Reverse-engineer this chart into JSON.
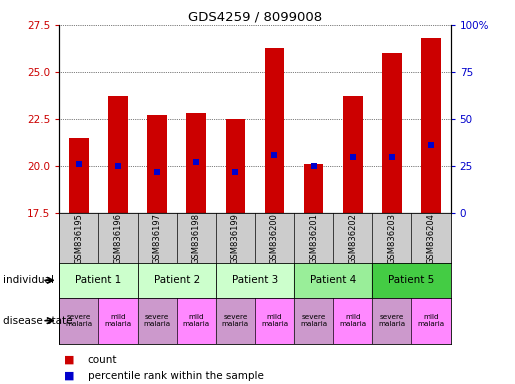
{
  "title": "GDS4259 / 8099008",
  "samples": [
    "GSM836195",
    "GSM836196",
    "GSM836197",
    "GSM836198",
    "GSM836199",
    "GSM836200",
    "GSM836201",
    "GSM836202",
    "GSM836203",
    "GSM836204"
  ],
  "bar_values": [
    21.5,
    23.7,
    22.7,
    22.8,
    22.5,
    26.3,
    20.1,
    23.7,
    26.0,
    26.8
  ],
  "percentile_values": [
    20.1,
    20.0,
    19.7,
    20.2,
    19.7,
    20.6,
    20.0,
    20.5,
    20.5,
    21.1
  ],
  "ylim": [
    17.5,
    27.5
  ],
  "yticks_left": [
    17.5,
    20.0,
    22.5,
    25.0,
    27.5
  ],
  "yticks_right_vals": [
    0,
    25,
    50,
    75,
    100
  ],
  "yticks_right_labels": [
    "0",
    "25",
    "50",
    "75",
    "100%"
  ],
  "bar_color": "#cc0000",
  "percentile_color": "#0000cc",
  "bar_width": 0.5,
  "patients": [
    {
      "label": "Patient 1",
      "samples": [
        0,
        1
      ],
      "color": "#ccffcc"
    },
    {
      "label": "Patient 2",
      "samples": [
        2,
        3
      ],
      "color": "#ccffcc"
    },
    {
      "label": "Patient 3",
      "samples": [
        4,
        5
      ],
      "color": "#ccffcc"
    },
    {
      "label": "Patient 4",
      "samples": [
        6,
        7
      ],
      "color": "#99ee99"
    },
    {
      "label": "Patient 5",
      "samples": [
        8,
        9
      ],
      "color": "#44cc44"
    }
  ],
  "disease_states": [
    {
      "label": "severe\nmalaria",
      "color": "#cc99cc"
    },
    {
      "label": "mild\nmalaria",
      "color": "#ff88ff"
    },
    {
      "label": "severe\nmalaria",
      "color": "#cc99cc"
    },
    {
      "label": "mild\nmalaria",
      "color": "#ff88ff"
    },
    {
      "label": "severe\nmalaria",
      "color": "#cc99cc"
    },
    {
      "label": "mild\nmalaria",
      "color": "#ff88ff"
    },
    {
      "label": "severe\nmalaria",
      "color": "#cc99cc"
    },
    {
      "label": "mild\nmalaria",
      "color": "#ff88ff"
    },
    {
      "label": "severe\nmalaria",
      "color": "#cc99cc"
    },
    {
      "label": "mild\nmalaria",
      "color": "#ff88ff"
    }
  ],
  "left_label_color": "#cc0000",
  "right_label_color": "#0000cc",
  "sample_bg_color": "#cccccc",
  "legend_count_color": "#cc0000",
  "legend_percentile_color": "#0000cc"
}
